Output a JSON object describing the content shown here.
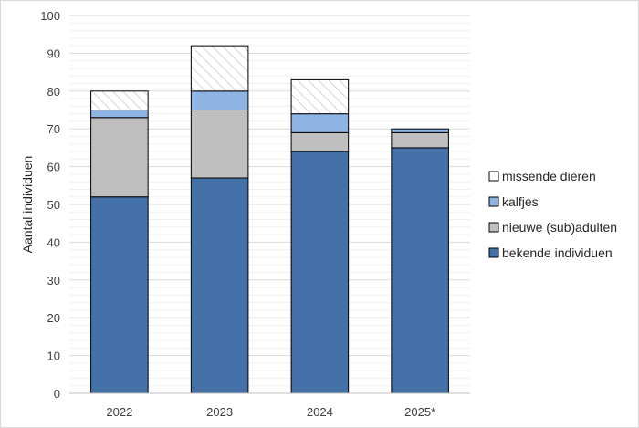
{
  "chart_data": {
    "type": "bar",
    "stacked": true,
    "title": "",
    "xlabel": "",
    "ylabel": "Aantal individuen",
    "ylim": [
      0,
      100
    ],
    "yticks": [
      0,
      10,
      20,
      30,
      40,
      50,
      60,
      70,
      80,
      90,
      100
    ],
    "grid": true,
    "legend_position": "right",
    "categories": [
      "2022",
      "2023",
      "2024",
      "2025*"
    ],
    "series": [
      {
        "name": "bekende individuen",
        "color": "#4472a8",
        "pattern": "solid",
        "values": [
          52,
          57,
          64,
          65
        ]
      },
      {
        "name": "nieuwe (sub)adulten",
        "color": "#bfbfbf",
        "pattern": "solid",
        "values": [
          21,
          18,
          5,
          4
        ]
      },
      {
        "name": "kalfjes",
        "color": "#8eb4e3",
        "pattern": "solid",
        "values": [
          2,
          5,
          5,
          1
        ]
      },
      {
        "name": "missende dieren",
        "color": "#ffffff",
        "pattern": "hatch",
        "values": [
          5,
          12,
          9,
          0
        ]
      }
    ],
    "legend_order": [
      3,
      2,
      1,
      0
    ]
  }
}
